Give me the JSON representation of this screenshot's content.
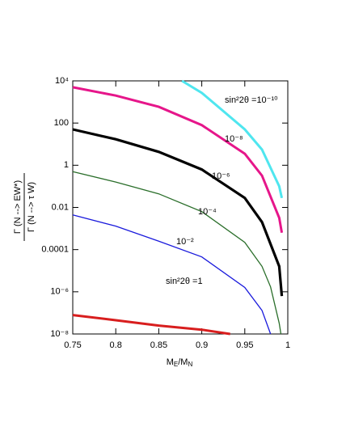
{
  "chart_data": {
    "type": "line",
    "x_label": [
      "M",
      "E",
      "/M",
      "N"
    ],
    "y_label": {
      "numerator": "Γ (N --> EW*)",
      "denominator": "Γ (N --> τ W)"
    },
    "log_y": true,
    "xlim": [
      0.75,
      1
    ],
    "xticks": [
      0.75,
      0.8,
      0.85,
      0.9,
      0.95,
      1
    ],
    "ylim": [
      1e-08,
      10000
    ],
    "yticks": [
      {
        "value": 1e-08,
        "label": "10⁻⁸"
      },
      {
        "value": 1e-06,
        "label": "10⁻⁶"
      },
      0.0001,
      0.01,
      1,
      100,
      {
        "value": 10000,
        "label": "10⁴"
      }
    ],
    "series": [
      {
        "name": "sin²2θ =10⁻¹⁰",
        "color": "#4fe6ef",
        "x": [
          0.877,
          0.9,
          0.95,
          0.97,
          0.99,
          0.993
        ],
        "values": [
          10000,
          2700,
          50,
          5.5,
          0.1,
          0.028
        ]
      },
      {
        "name": "10⁻⁸",
        "color": "#e6168a",
        "x": [
          0.75,
          0.8,
          0.85,
          0.9,
          0.95,
          0.97,
          0.99,
          0.993
        ],
        "values": [
          5000,
          2000,
          590,
          80,
          3.5,
          0.32,
          0.0032,
          0.00063
        ]
      },
      {
        "name": "10⁻⁶",
        "color": "#000000",
        "x": [
          0.75,
          0.8,
          0.85,
          0.9,
          0.95,
          0.97,
          0.99,
          0.993
        ],
        "values": [
          50,
          17,
          4.3,
          0.63,
          0.028,
          0.002,
          1.6e-05,
          6.3e-07
        ]
      },
      {
        "name": "10⁻⁴",
        "color": "#2a6e2a",
        "x": [
          0.75,
          0.8,
          0.85,
          0.9,
          0.95,
          0.97,
          0.98,
          0.99,
          0.992
        ],
        "values": [
          0.5,
          0.16,
          0.044,
          0.0063,
          0.00022,
          1.6e-05,
          1.7e-06,
          3.2e-08,
          1e-08
        ]
      },
      {
        "name": "10⁻²",
        "color": "#1a1adc",
        "x": [
          0.75,
          0.8,
          0.85,
          0.9,
          0.95,
          0.97,
          0.98
        ],
        "values": [
          0.0044,
          0.0013,
          0.00025,
          4.5e-05,
          1.6e-06,
          1.3e-07,
          1e-08
        ]
      },
      {
        "name": "sin²2θ =1",
        "color": "#d81e1e",
        "x": [
          0.75,
          0.8,
          0.85,
          0.9,
          0.933
        ],
        "values": [
          7.9e-08,
          4.5e-08,
          2.5e-08,
          1.6e-08,
          1e-08
        ]
      }
    ]
  }
}
